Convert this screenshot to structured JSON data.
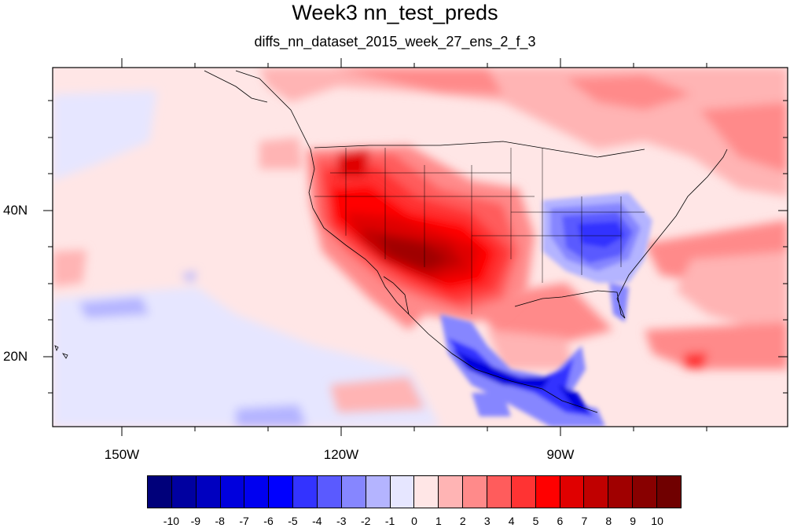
{
  "title": "Week3 nn_test_preds",
  "subtitle": "diffs_nn_dataset_2015_week_27_ens_2_f_3",
  "lat_labels": [
    "40N",
    "20N"
  ],
  "lon_labels": [
    "150W",
    "120W",
    "90W"
  ],
  "colorbar": {
    "labels": [
      "-10",
      "-9",
      "-8",
      "-7",
      "-6",
      "-5",
      "-4",
      "-3",
      "-2",
      "-1",
      "0",
      "1",
      "2",
      "3",
      "4",
      "5",
      "6",
      "7",
      "8",
      "9",
      "10"
    ],
    "colors": [
      "#00007a",
      "#0000a0",
      "#0000c0",
      "#0000dd",
      "#0000f0",
      "#0000ff",
      "#3333ff",
      "#5a5aff",
      "#8686ff",
      "#b4b4ff",
      "#e6e6ff",
      "#ffe6e6",
      "#ffb4b4",
      "#ff8a8a",
      "#ff5c5c",
      "#ff3333",
      "#ff0000",
      "#e00000",
      "#c00000",
      "#a00000",
      "#880000",
      "#700000"
    ]
  }
}
